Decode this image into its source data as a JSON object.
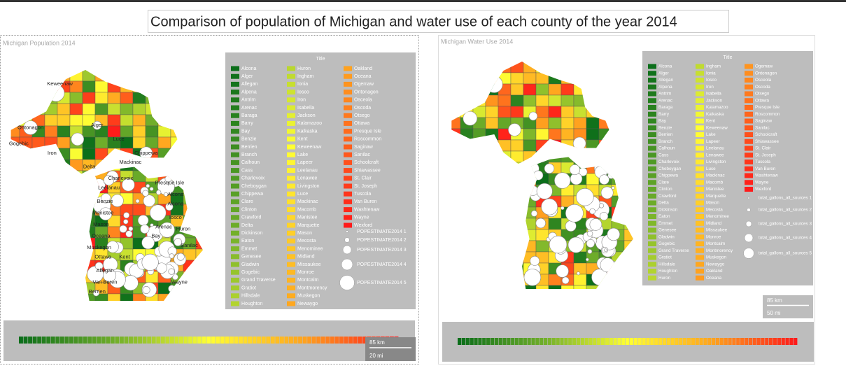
{
  "title": "Comparison of population of Michigan and water use of each county of the year 2014",
  "panels": [
    {
      "title": "Michigan Population 2014",
      "legend": {
        "title": "Title",
        "color_scale": [
          "#0b6e1a",
          "#6fae2a",
          "#ffff33",
          "#ffa51f",
          "#ff1a1a"
        ],
        "items": [
          "Alcona",
          "Alger",
          "Allegan",
          "Alpena",
          "Antrim",
          "Arenac",
          "Baraga",
          "Barry",
          "Bay",
          "Benzie",
          "Berrien",
          "Branch",
          "Calhoun",
          "Cass",
          "Charlevoix",
          "Cheboygan",
          "Chippewa",
          "Clare",
          "Clinton",
          "Crawford",
          "Delta",
          "Dickinson",
          "Eaton",
          "Emmet",
          "Genesee",
          "Gladwin",
          "Gogebic",
          "Grand Traverse",
          "Gratiot",
          "Hillsdale",
          "Houghton",
          "Huron",
          "Ingham",
          "Ionia",
          "Iosco",
          "Iron",
          "Isabella",
          "Jackson",
          "Kalamazoo",
          "Kalkaska",
          "Kent",
          "Keweenaw",
          "Lake",
          "Lapeer",
          "Leelanau",
          "Lenawee",
          "Livingston",
          "Luce",
          "Mackinac",
          "Macomb",
          "Manistee",
          "Marquette",
          "Mason",
          "Mecosta",
          "Menominee",
          "Midland",
          "Missaukee",
          "Monroe",
          "Montcalm",
          "Montmorency",
          "Muskegon",
          "Newaygo",
          "Oakland",
          "Oceana",
          "Ogemaw",
          "Ontonagon",
          "Osceola",
          "Oscoda",
          "Otsego",
          "Ottawa",
          "Presque Isle",
          "Roscommon",
          "Saginaw",
          "Sanilac",
          "Schoolcraft",
          "Shiawassee",
          "St. Clair",
          "St. Joseph",
          "Tuscola",
          "Van Buren",
          "Washtenaw",
          "Wayne",
          "Wexford"
        ],
        "sizes": [
          "POPESTIMATE2014 1",
          "POPESTIMATE2014 2",
          "POPESTIMATE2014 3",
          "POPESTIMATE2014 4",
          "POPESTIMATE2014 5"
        ]
      },
      "map_labels": [
        "Keweenaw",
        "Ontonagon",
        "Gogebic",
        "Iron",
        "Alger",
        "Luce",
        "Chippewa",
        "Delta",
        "Mackinac",
        "Charlevoix",
        "Presque Isle",
        "Leelanau",
        "Alcona",
        "Benzie",
        "Alcona",
        "Manistee",
        "Iosco",
        "Mason",
        "Arenac",
        "Huron",
        "Oceana",
        "Bay",
        "Sanilac",
        "Muskegon",
        "Ottawa",
        "Kent",
        "Allegan",
        "Van Buren",
        "Wayne",
        "Berrien"
      ],
      "scale": [
        "85 km",
        "20 mi"
      ]
    },
    {
      "title": "Michigan Water Use 2014",
      "legend": {
        "title": "Title",
        "color_scale": [
          "#0b6e1a",
          "#6fae2a",
          "#ffff33",
          "#ffa51f",
          "#ff1a1a"
        ],
        "items": [
          "Alcona",
          "Alger",
          "Allegan",
          "Alpena",
          "Antrim",
          "Arenac",
          "Baraga",
          "Barry",
          "Bay",
          "Benzie",
          "Berrien",
          "Branch",
          "Calhoun",
          "Cass",
          "Charlevoix",
          "Cheboygan",
          "Chippewa",
          "Clare",
          "Clinton",
          "Crawford",
          "Delta",
          "Dickinson",
          "Eaton",
          "Emmet",
          "Genesee",
          "Gladwin",
          "Gogebic",
          "Grand Traverse",
          "Gratiot",
          "Hillsdale",
          "Houghton",
          "Huron",
          "Ingham",
          "Ionia",
          "Iosco",
          "Iron",
          "Isabella",
          "Jackson",
          "Kalamazoo",
          "Kalkaska",
          "Kent",
          "Keweenaw",
          "Lake",
          "Lapeer",
          "Leelanau",
          "Lenawee",
          "Livingston",
          "Luce",
          "Mackinac",
          "Macomb",
          "Manistee",
          "Marquette",
          "Mason",
          "Mecosta",
          "Menominee",
          "Midland",
          "Missaukee",
          "Monroe",
          "Montcalm",
          "Montmorency",
          "Muskegon",
          "Newaygo",
          "Oakland",
          "Oceana",
          "Ogemaw",
          "Ontonagon",
          "Osceola",
          "Oscoda",
          "Otsego",
          "Ottawa",
          "Presque Isle",
          "Roscommon",
          "Saginaw",
          "Sanilac",
          "Schoolcraft",
          "Shiawassee",
          "St. Clair",
          "St. Joseph",
          "Tuscola",
          "Van Buren",
          "Washtenaw",
          "Wayne",
          "Wexford"
        ],
        "sizes": [
          "total_gallons_all_sources 1",
          "total_gallons_all_sources 2",
          "total_gallons_all_sources 3",
          "total_gallons_all_sources 4",
          "total_gallons_all_sources 5"
        ]
      },
      "map_labels": [],
      "scale": [
        "85 km",
        "50 mi"
      ]
    }
  ]
}
